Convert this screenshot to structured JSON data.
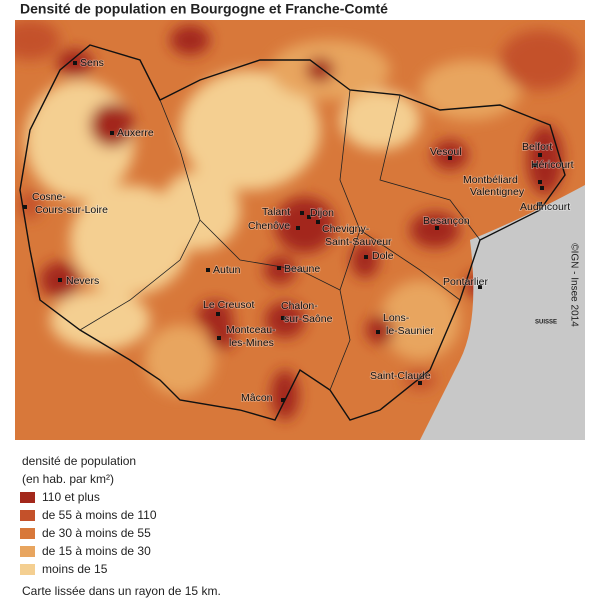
{
  "title": "Densité de population en Bourgogne et Franche-Comté",
  "map": {
    "cities": [
      {
        "lines": [
          "Sens"
        ]
      },
      {
        "lines": [
          "Auxerre"
        ]
      },
      {
        "lines": [
          "Cosne-",
          "Cours-sur-Loire"
        ]
      },
      {
        "lines": [
          "Nevers"
        ]
      },
      {
        "lines": [
          "Vesoul"
        ]
      },
      {
        "lines": [
          "Belfort"
        ]
      },
      {
        "lines": [
          "Héricourt"
        ]
      },
      {
        "lines": [
          "Montbéliard"
        ]
      },
      {
        "lines": [
          "Valentigney"
        ]
      },
      {
        "lines": [
          "Audincourt"
        ]
      },
      {
        "lines": [
          "Talant"
        ]
      },
      {
        "lines": [
          "Dijon"
        ]
      },
      {
        "lines": [
          "Chenôve"
        ]
      },
      {
        "lines": [
          "Chevigny-",
          "Saint-Sauveur"
        ]
      },
      {
        "lines": [
          "Besançon"
        ]
      },
      {
        "lines": [
          "Dole"
        ]
      },
      {
        "lines": [
          "Beaune"
        ]
      },
      {
        "lines": [
          "Autun"
        ]
      },
      {
        "lines": [
          "Le Creusot"
        ]
      },
      {
        "lines": [
          "Chalon-",
          "sur-Saône"
        ]
      },
      {
        "lines": [
          "Pontarlier"
        ]
      },
      {
        "lines": [
          "Lons-",
          "le-Saunier"
        ]
      },
      {
        "lines": [
          "Montceau-",
          "les-Mines"
        ]
      },
      {
        "lines": [
          "Saint-Claude"
        ]
      },
      {
        "lines": [
          "Mâcon"
        ]
      }
    ],
    "country": "SUISSE",
    "credit": "©IGN - Insee 2014"
  },
  "legend": {
    "title": "densité de population",
    "subtitle": "(en hab. par km²)",
    "items": [
      {
        "label": "110 et plus",
        "color": "#a3281b"
      },
      {
        "label": "de 55 à moins de 110",
        "color": "#c4512a"
      },
      {
        "label": "de 30 à moins de 55",
        "color": "#d8783a"
      },
      {
        "label": "de 15 à moins de 30",
        "color": "#e8a55f"
      },
      {
        "label": "moins de 15",
        "color": "#f4cf91"
      }
    ]
  },
  "note": "Carte lissée dans un rayon de 15 km."
}
